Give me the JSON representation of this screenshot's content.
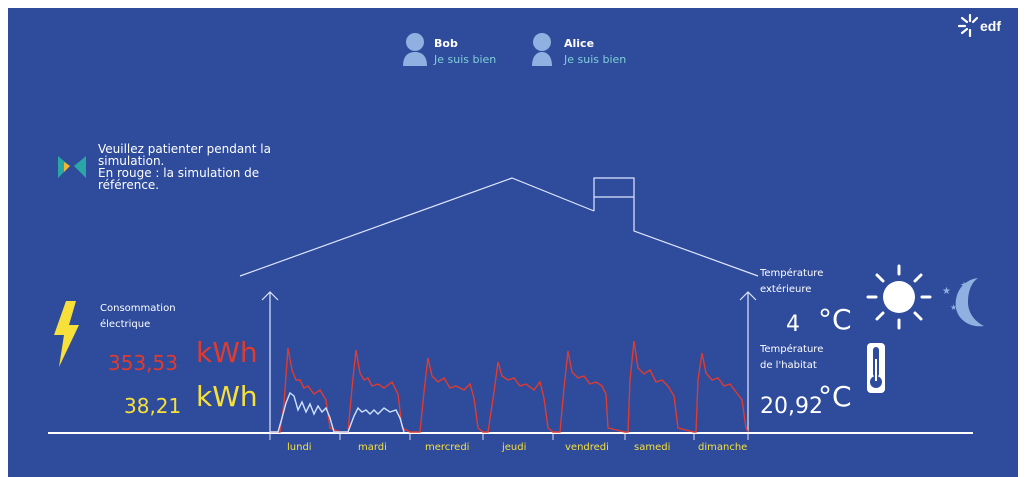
{
  "brand": {
    "logo_text": "EDF"
  },
  "occupants": [
    {
      "name": "Bob",
      "status": "Je suis bien",
      "icon": "person-icon"
    },
    {
      "name": "Alice",
      "status": "Je suis bien",
      "icon": "person-icon"
    }
  ],
  "simulation_message": {
    "line1": "Veuillez patienter pendant la",
    "line2": "simulation.",
    "line3": "En rouge : la simulation de",
    "line4": "référence."
  },
  "consumption": {
    "label_line1": "Consommation",
    "label_line2": "électrique",
    "reference_value": "353,53",
    "reference_unit": "kWh",
    "current_value": "38,21",
    "current_unit": "kWh",
    "reference_color": "#e03b2f",
    "current_color": "#f7e03a"
  },
  "temperatures": {
    "outside_label_line1": "Température",
    "outside_label_line2": "extérieure",
    "outside_value": "4",
    "outside_unit": "°C",
    "home_label_line1": "Température",
    "home_label_line2": "de l'habitat",
    "home_value": "20,92",
    "home_unit": "°C"
  },
  "days": [
    "lundi",
    "mardi",
    "mercredi",
    "jeudi",
    "vendredi",
    "samedi",
    "dimanche"
  ],
  "colors": {
    "background": "#2e4b9c",
    "accent": "#f7e03a",
    "reference": "#e03b2f",
    "current": "#cfe3ff"
  },
  "icons": [
    "lightning-icon",
    "sun-icon",
    "moon-icon",
    "thermometer-icon",
    "hourglass-icon",
    "edf-logo-icon"
  ]
}
